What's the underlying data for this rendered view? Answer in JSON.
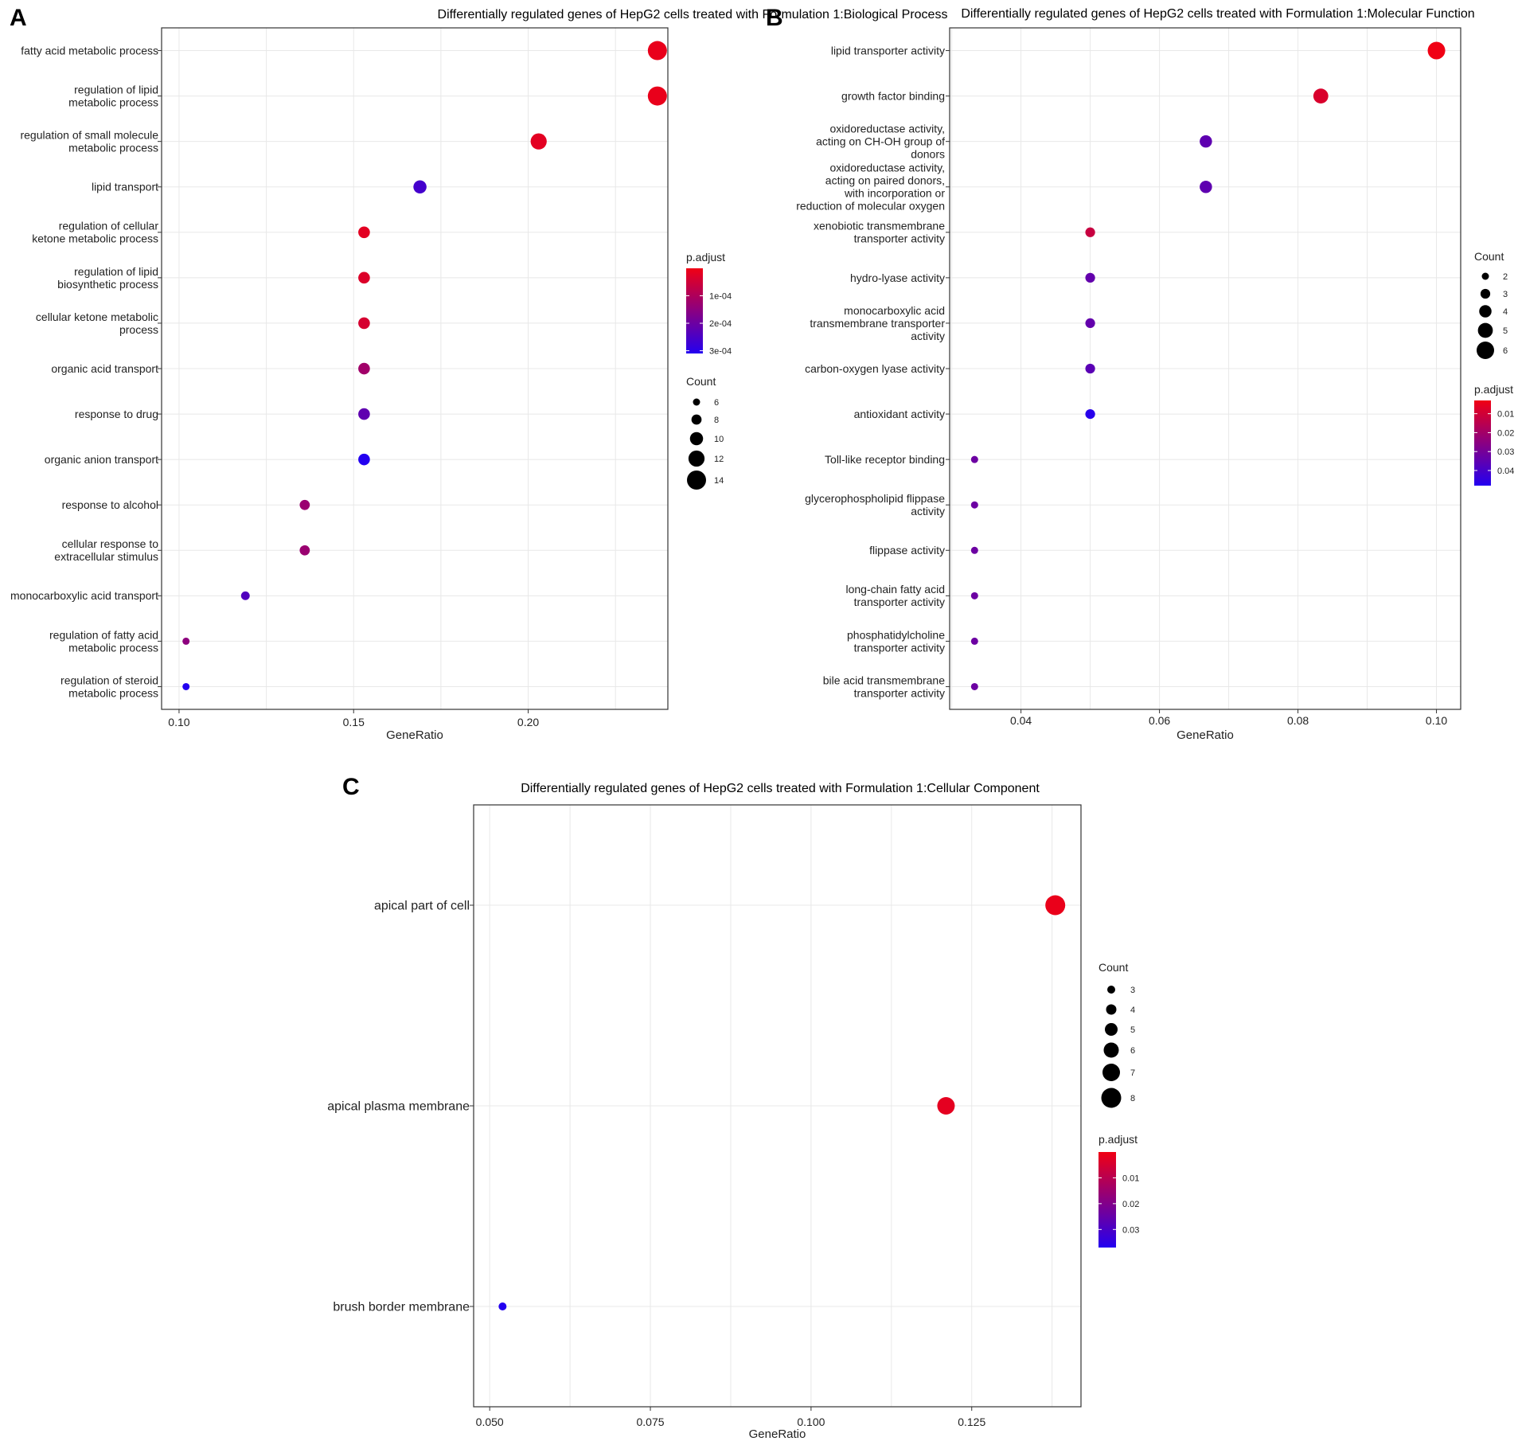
{
  "chart_data": [
    {
      "panel": "A",
      "type": "scatter",
      "title": "Differentially regulated genes of HepG2 cells treated with Formulation 1:Biological Process",
      "xlabel": "GeneRatio",
      "ylabel": "",
      "xlim": [
        0.095,
        0.24
      ],
      "xticks": [
        0.1,
        0.15,
        0.2
      ],
      "xtick_labels": [
        "0.10",
        "0.15",
        "0.20"
      ],
      "categories": [
        [
          "fatty acid metabolic process"
        ],
        [
          "regulation of lipid",
          "metabolic process"
        ],
        [
          "regulation of small molecule",
          "metabolic process"
        ],
        [
          "lipid transport"
        ],
        [
          "regulation of cellular",
          "ketone metabolic process"
        ],
        [
          "regulation of lipid",
          "biosynthetic process"
        ],
        [
          "cellular ketone metabolic",
          "process"
        ],
        [
          "organic acid transport"
        ],
        [
          "response to drug"
        ],
        [
          "organic anion transport"
        ],
        [
          "response to alcohol"
        ],
        [
          "cellular response to",
          "extracellular stimulus"
        ],
        [
          "monocarboxylic acid transport"
        ],
        [
          "regulation of fatty acid",
          "metabolic process"
        ],
        [
          "regulation of steroid",
          "metabolic process"
        ]
      ],
      "gene_ratio": [
        0.237,
        0.237,
        0.203,
        0.169,
        0.153,
        0.153,
        0.153,
        0.153,
        0.153,
        0.153,
        0.136,
        0.136,
        0.119,
        0.102,
        0.102
      ],
      "count": [
        14,
        14,
        12,
        10,
        9,
        9,
        9,
        9,
        9,
        9,
        8,
        8,
        7,
        6,
        6
      ],
      "p_adjust": [
        1e-05,
        1e-05,
        2e-05,
        0.00026,
        2e-05,
        3e-05,
        4e-05,
        0.00012,
        0.00022,
        0.00031,
        0.00013,
        0.00013,
        0.00024,
        0.00015,
        0.00031
      ],
      "color_scale": {
        "title": "p.adjust",
        "min": 0.0,
        "max": 0.00031,
        "ticks": [
          0.0001,
          0.0002,
          0.0003
        ],
        "tick_labels": [
          "1e-04",
          "2e-04",
          "3e-04"
        ]
      },
      "size_scale": {
        "title": "Count",
        "min": 6,
        "max": 14,
        "ticks": [
          6,
          8,
          10,
          12,
          14
        ],
        "tick_labels": [
          "6",
          "8",
          "10",
          "12",
          "14"
        ]
      },
      "legend_position": "right"
    },
    {
      "panel": "B",
      "type": "scatter",
      "title": "Differentially regulated genes of HepG2 cells treated with Formulation 1:Molecular Function",
      "xlabel": "GeneRatio",
      "ylabel": "",
      "xlim": [
        0.0297,
        0.1035
      ],
      "xticks": [
        0.04,
        0.06,
        0.08,
        0.1
      ],
      "xtick_labels": [
        "0.04",
        "0.06",
        "0.08",
        "0.10"
      ],
      "categories": [
        [
          "lipid transporter activity"
        ],
        [
          "growth factor binding"
        ],
        [
          "oxidoreductase activity,",
          "acting on CH-OH group of",
          "donors"
        ],
        [
          "oxidoreductase activity,",
          "acting on paired donors,",
          "with incorporation or",
          "reduction of molecular oxygen"
        ],
        [
          "xenobiotic transmembrane",
          "transporter activity"
        ],
        [
          "hydro-lyase activity"
        ],
        [
          "monocarboxylic acid",
          "transmembrane transporter",
          "activity"
        ],
        [
          "carbon-oxygen lyase activity"
        ],
        [
          "antioxidant activity"
        ],
        [
          "Toll-like receptor binding"
        ],
        [
          "glycerophospholipid flippase",
          "activity"
        ],
        [
          "flippase activity"
        ],
        [
          "long-chain fatty acid",
          "transporter activity"
        ],
        [
          "phosphatidylcholine",
          "transporter activity"
        ],
        [
          "bile acid transmembrane",
          "transporter activity"
        ]
      ],
      "gene_ratio": [
        0.1,
        0.0833,
        0.0667,
        0.0667,
        0.05,
        0.05,
        0.05,
        0.05,
        0.05,
        0.0333,
        0.0333,
        0.0333,
        0.0333,
        0.0333,
        0.0333
      ],
      "count": [
        6,
        5,
        4,
        4,
        3,
        3,
        3,
        3,
        3,
        2,
        2,
        2,
        2,
        2,
        2
      ],
      "p_adjust": [
        0.003,
        0.008,
        0.035,
        0.035,
        0.012,
        0.034,
        0.034,
        0.036,
        0.047,
        0.032,
        0.032,
        0.032,
        0.032,
        0.032,
        0.032
      ],
      "color_scale": {
        "title": "p.adjust",
        "min": 0.003,
        "max": 0.048,
        "ticks": [
          0.01,
          0.02,
          0.03,
          0.04
        ],
        "tick_labels": [
          "0.01",
          "0.02",
          "0.03",
          "0.04"
        ]
      },
      "size_scale": {
        "title": "Count",
        "min": 2,
        "max": 6,
        "ticks": [
          2,
          3,
          4,
          5,
          6
        ],
        "tick_labels": [
          "2",
          "3",
          "4",
          "5",
          "6"
        ]
      },
      "legend_position": "right"
    },
    {
      "panel": "C",
      "type": "scatter",
      "title": "Differentially regulated genes of HepG2 cells treated with Formulation 1:Cellular Component",
      "xlabel": "GeneRatio",
      "ylabel": "",
      "xlim": [
        0.0475,
        0.142
      ],
      "xticks": [
        0.05,
        0.075,
        0.1,
        0.125
      ],
      "xtick_labels": [
        "0.050",
        "0.075",
        "0.100",
        "0.125"
      ],
      "categories": [
        [
          "apical part of cell"
        ],
        [
          "apical plasma membrane"
        ],
        [
          "brush border membrane"
        ]
      ],
      "gene_ratio": [
        0.138,
        0.121,
        0.052
      ],
      "count": [
        8,
        7,
        3
      ],
      "p_adjust": [
        0.001,
        0.002,
        0.037
      ],
      "color_scale": {
        "title": "p.adjust",
        "min": 0.0,
        "max": 0.037,
        "ticks": [
          0.01,
          0.02,
          0.03
        ],
        "tick_labels": [
          "0.01",
          "0.02",
          "0.03"
        ]
      },
      "size_scale": {
        "title": "Count",
        "min": 3,
        "max": 8,
        "ticks": [
          3,
          4,
          5,
          6,
          7,
          8
        ],
        "tick_labels": [
          "3",
          "4",
          "5",
          "6",
          "7",
          "8"
        ]
      },
      "legend_position": "right"
    }
  ]
}
